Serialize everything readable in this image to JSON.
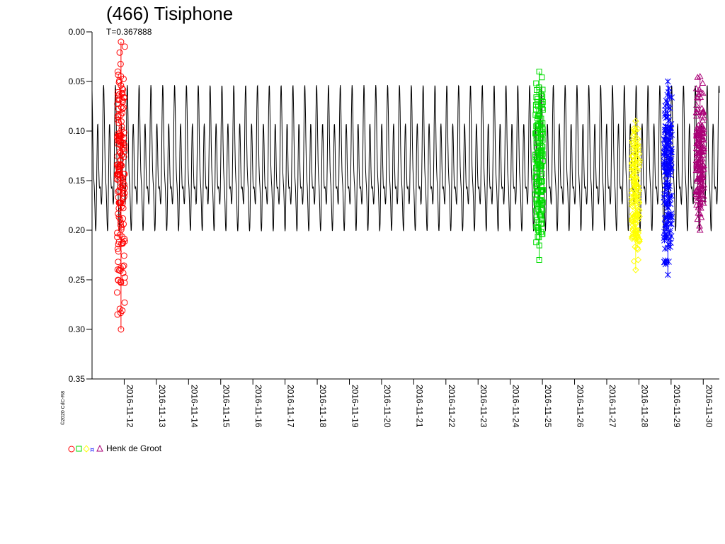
{
  "chart_data": {
    "type": "scatter",
    "title": "(466) Tisiphone",
    "subtitle": "T=0.367888",
    "copyright": "©2020 CdC-R8",
    "y_axis": {
      "ticks": [
        "0.00",
        "0.05",
        "0.10",
        "0.15",
        "0.20",
        "0.25",
        "0.30",
        "0.35"
      ],
      "range": [
        0.0,
        0.35
      ],
      "inverted": true
    },
    "x_axis": {
      "ticks": [
        "2016-11-12",
        "2016-11-13",
        "2016-11-14",
        "2016-11-15",
        "2016-11-16",
        "2016-11-17",
        "2016-11-18",
        "2016-11-19",
        "2016-11-20",
        "2016-11-21",
        "2016-11-22",
        "2016-11-23",
        "2016-11-24",
        "2016-11-25",
        "2016-11-26",
        "2016-11-27",
        "2016-11-28",
        "2016-11-29",
        "2016-11-30"
      ],
      "range": [
        "2016-11-11",
        "2016-11-30"
      ]
    },
    "model_curve": {
      "period_days": 0.367888,
      "min_mag": 0.05,
      "max_mag": 0.225,
      "color": "#000000"
    },
    "series": [
      {
        "name": "",
        "marker": "circle",
        "color": "#ff0000",
        "x_range": [
          "2016-11-11",
          "2016-11-12"
        ],
        "y_range": [
          0.01,
          0.3
        ]
      },
      {
        "name": "",
        "marker": "square",
        "color": "#00dd00",
        "x_range": [
          "2016-11-24",
          "2016-11-25"
        ],
        "y_range": [
          0.04,
          0.23
        ]
      },
      {
        "name": "",
        "marker": "diamond",
        "color": "#ffff00",
        "x_range": [
          "2016-11-27",
          "2016-11-28"
        ],
        "y_range": [
          0.09,
          0.24
        ]
      },
      {
        "name": "",
        "marker": "star",
        "color": "#0000ff",
        "x_range": [
          "2016-11-28",
          "2016-11-29"
        ],
        "y_range": [
          0.05,
          0.245
        ]
      },
      {
        "name": "",
        "marker": "triangle",
        "color": "#aa0077",
        "x_range": [
          "2016-11-29",
          "2016-11-30"
        ],
        "y_range": [
          0.045,
          0.2
        ]
      }
    ],
    "legend": {
      "label": "Henk de Groot",
      "placement": "bottom-left"
    }
  }
}
